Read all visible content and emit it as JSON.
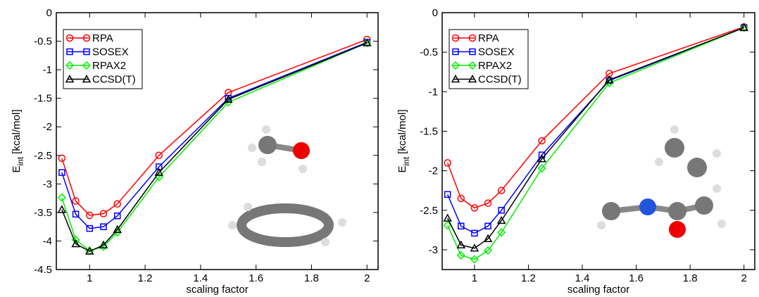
{
  "chart_data": [
    {
      "type": "line",
      "xlabel": "scaling factor",
      "ylabel": [
        "E",
        "int",
        "[kcal/mol]"
      ],
      "x": [
        0.9,
        0.95,
        1,
        1.05,
        1.1,
        1.25,
        1.5,
        2
      ],
      "xlim": [
        0.88,
        2.04
      ],
      "xticks": [
        1,
        1.2,
        1.4,
        1.6,
        1.8,
        2
      ],
      "ylim": [
        -4.5,
        0
      ],
      "yticks": [
        -4.5,
        -4,
        -3.5,
        -3,
        -2.5,
        -2,
        -1.5,
        -1,
        -0.5,
        0
      ],
      "legend": "top-left",
      "series": [
        {
          "name": "RPA",
          "color": "#ff0000",
          "marker": "circle",
          "values": [
            -2.55,
            -3.3,
            -3.55,
            -3.52,
            -3.35,
            -2.5,
            -1.4,
            -0.47
          ]
        },
        {
          "name": "SOSEX",
          "color": "#0000ff",
          "marker": "square",
          "values": [
            -2.8,
            -3.53,
            -3.78,
            -3.75,
            -3.56,
            -2.7,
            -1.5,
            -0.52
          ]
        },
        {
          "name": "RPAX2",
          "color": "#00ee00",
          "marker": "diamond",
          "values": [
            -3.24,
            -3.98,
            -4.17,
            -4.1,
            -3.85,
            -2.88,
            -1.57,
            -0.53
          ]
        },
        {
          "name": "CCSD(T)",
          "color": "#000000",
          "marker": "triangle",
          "values": [
            -3.45,
            -4.05,
            -4.18,
            -4.07,
            -3.8,
            -2.8,
            -1.52,
            -0.53
          ]
        }
      ]
    },
    {
      "type": "line",
      "xlabel": "scaling factor",
      "ylabel": [
        "E",
        "int",
        "[kcal/mol]"
      ],
      "x": [
        0.9,
        0.95,
        1,
        1.05,
        1.1,
        1.25,
        1.5,
        2
      ],
      "xlim": [
        0.88,
        2.04
      ],
      "xticks": [
        1,
        1.2,
        1.4,
        1.6,
        1.8,
        2
      ],
      "ylim": [
        -3.25,
        0
      ],
      "yticks": [
        -3,
        -2.5,
        -2,
        -1.5,
        -1,
        -0.5,
        0
      ],
      "legend": "top-left",
      "series": [
        {
          "name": "RPA",
          "color": "#ff0000",
          "marker": "circle",
          "values": [
            -1.9,
            -2.35,
            -2.47,
            -2.41,
            -2.25,
            -1.62,
            -0.77,
            -0.18
          ]
        },
        {
          "name": "SOSEX",
          "color": "#0000ff",
          "marker": "square",
          "values": [
            -2.3,
            -2.7,
            -2.79,
            -2.7,
            -2.5,
            -1.8,
            -0.86,
            -0.19
          ]
        },
        {
          "name": "RPAX2",
          "color": "#00ee00",
          "marker": "diamond",
          "values": [
            -2.69,
            -3.07,
            -3.12,
            -3.01,
            -2.78,
            -1.97,
            -0.89,
            -0.19
          ]
        },
        {
          "name": "CCSD(T)",
          "color": "#000000",
          "marker": "triangle",
          "values": [
            -2.6,
            -2.94,
            -2.98,
            -2.86,
            -2.63,
            -1.85,
            -0.85,
            -0.19
          ]
        }
      ]
    }
  ]
}
